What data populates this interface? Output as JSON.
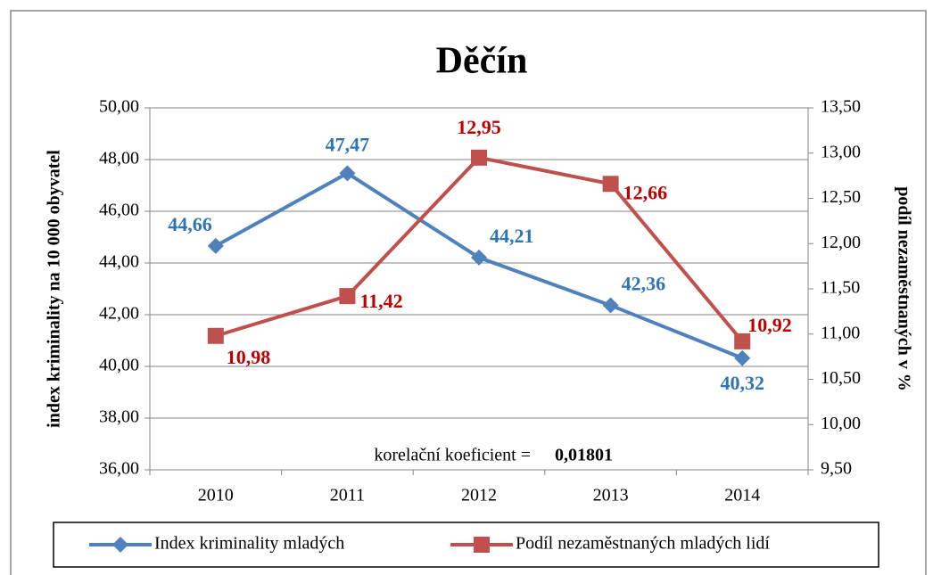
{
  "chart_data": {
    "type": "line",
    "title": "Děčín",
    "categories": [
      "2010",
      "2011",
      "2012",
      "2013",
      "2014"
    ],
    "y_label": "index kriminality na 10 000 obyvatel",
    "y2_label": "podíl nezaměstnaných v %",
    "annotation": {
      "text": "korelační koeficient =",
      "value": "0,01801"
    },
    "series": [
      {
        "name": "Index kriminality mladých",
        "color": "#4f81bd",
        "label_color": "#2e75b6",
        "values": [
          44.66,
          47.47,
          44.21,
          42.36,
          40.32
        ],
        "value_labels": [
          "44,66",
          "47,47",
          "44,21",
          "42,36",
          "40,32"
        ]
      },
      {
        "name": "Podíl nezaměstnaných mladých lidí",
        "color": "#c0504d",
        "label_color": "#c00000",
        "axis": "y2",
        "values": [
          10.98,
          11.42,
          12.95,
          12.66,
          10.92
        ],
        "value_labels": [
          "10,98",
          "11,42",
          "12,95",
          "12,66",
          "10,92"
        ]
      }
    ],
    "ylim": [
      36,
      50
    ],
    "yticks": [
      {
        "value": 36,
        "label": "36,00"
      },
      {
        "value": 38,
        "label": "38,00"
      },
      {
        "value": 40,
        "label": "40,00"
      },
      {
        "value": 42,
        "label": "42,00"
      },
      {
        "value": 44,
        "label": "44,00"
      },
      {
        "value": 46,
        "label": "46,00"
      },
      {
        "value": 48,
        "label": "48,00"
      },
      {
        "value": 50,
        "label": "50,00"
      }
    ],
    "y2lim": [
      9.5,
      13.5
    ],
    "y2ticks": [
      {
        "value": 9.5,
        "label": "9,50"
      },
      {
        "value": 10,
        "label": "10,00"
      },
      {
        "value": 10.5,
        "label": "10,50"
      },
      {
        "value": 11,
        "label": "11,00"
      },
      {
        "value": 11.5,
        "label": "11,50"
      },
      {
        "value": 12,
        "label": "12,00"
      },
      {
        "value": 12.5,
        "label": "12,50"
      },
      {
        "value": 13,
        "label": "13,00"
      },
      {
        "value": 13.5,
        "label": "13,50"
      }
    ],
    "grid": true,
    "legend": "bottom"
  }
}
